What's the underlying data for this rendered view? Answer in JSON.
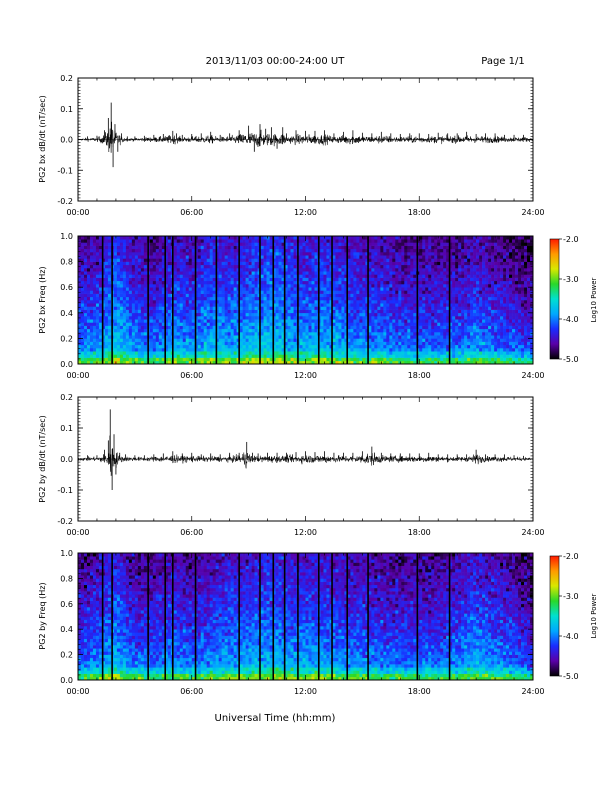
{
  "header": {
    "title": "2013/11/03  00:00-24:00 UT",
    "page": "Page 1/1"
  },
  "footer": {
    "xlabel": "Universal Time (hh:mm)"
  },
  "colorbar": {
    "label": "Log10 Power",
    "ticks": [
      "-2.0",
      "-3.0",
      "-4.0",
      "-5.0"
    ],
    "range": [
      -5.0,
      -2.0
    ],
    "colors": [
      "#000000",
      "#5a00a8",
      "#1a2cff",
      "#00a8ff",
      "#00e0d0",
      "#2ad82a",
      "#d8e800",
      "#ff9a00",
      "#ff1a00"
    ]
  },
  "chart_data": [
    {
      "type": "line",
      "panel": "PG2 bx dB/dt",
      "ylabel": "PG2 bx dB/dt (nT/sec)",
      "xlim": [
        0,
        24
      ],
      "ylim": [
        -0.2,
        0.2
      ],
      "x_ticks": [
        "00:00",
        "06:00",
        "12:00",
        "18:00",
        "24:00"
      ],
      "y_ticks": [
        "0.2",
        "0.1",
        "0.0",
        "-0.1",
        "-0.2"
      ],
      "series": [
        {
          "x": [
            0,
            0.5,
            1.0,
            1.4,
            1.6,
            1.75,
            1.85,
            1.95,
            2.1,
            2.3,
            2.6,
            3.0,
            3.5,
            4.0,
            4.5,
            5.0,
            5.2,
            5.5,
            6.0,
            6.5,
            7.0,
            7.5,
            8.0,
            8.5,
            9.0,
            9.3,
            9.6,
            9.9,
            10.2,
            10.5,
            10.8,
            11.0,
            11.5,
            12.0,
            12.5,
            13.0,
            13.5,
            14.0,
            14.5,
            15.0,
            15.5,
            16.0,
            16.5,
            17.0,
            17.5,
            18.0,
            18.5,
            19.0,
            19.5,
            20.0,
            20.5,
            21.0,
            21.5,
            22.0,
            22.5,
            23.0,
            23.5,
            24.0
          ],
          "y": [
            0.005,
            0.01,
            0.012,
            0.03,
            0.07,
            0.12,
            -0.09,
            0.05,
            -0.04,
            0.02,
            0.01,
            0.01,
            0.012,
            0.015,
            0.018,
            0.028,
            0.02,
            0.015,
            0.018,
            0.02,
            0.025,
            0.015,
            0.02,
            0.03,
            0.045,
            -0.04,
            0.05,
            0.035,
            0.04,
            -0.03,
            0.04,
            0.02,
            0.03,
            0.028,
            0.028,
            0.03,
            0.02,
            0.025,
            0.03,
            0.022,
            0.02,
            0.025,
            0.02,
            0.018,
            0.02,
            0.02,
            0.018,
            0.022,
            0.02,
            0.02,
            0.025,
            0.018,
            0.02,
            0.02,
            0.015,
            0.015,
            0.015,
            0.01
          ]
        }
      ]
    },
    {
      "type": "heatmap",
      "panel": "PG2 bx Freq",
      "ylabel": "PG2 bx Freq (Hz)",
      "xlim": [
        0,
        24
      ],
      "ylim": [
        0.0,
        1.0
      ],
      "x_ticks": [
        "00:00",
        "06:00",
        "12:00",
        "18:00",
        "24:00"
      ],
      "y_ticks": [
        "1.0",
        "0.8",
        "0.6",
        "0.4",
        "0.2",
        "0.0"
      ],
      "zlim": [
        -5.0,
        -2.0
      ],
      "gap_times_hr": [
        1.3,
        1.8,
        3.7,
        4.6,
        5.0,
        6.2,
        7.3,
        8.5,
        9.6,
        10.3,
        10.9,
        11.6,
        12.7,
        13.4,
        14.2,
        15.3,
        17.9,
        19.6
      ],
      "intensity_profile": {
        "t": [
          0,
          1,
          2,
          3,
          4,
          5,
          6,
          7,
          8,
          9,
          10,
          11,
          12,
          13,
          14,
          15,
          16,
          17,
          18,
          19,
          20,
          21,
          22,
          23,
          24
        ],
        "level_low_freq": [
          -3.6,
          -3.5,
          -3.2,
          -3.5,
          -3.6,
          -3.4,
          -3.5,
          -3.3,
          -3.4,
          -3.3,
          -3.2,
          -3.3,
          -3.4,
          -3.3,
          -3.4,
          -3.5,
          -3.5,
          -3.6,
          -3.6,
          -3.6,
          -3.6,
          -3.5,
          -3.6,
          -3.7,
          -3.8
        ]
      }
    },
    {
      "type": "line",
      "panel": "PG2 by dB/dt",
      "ylabel": "PG2 by dB/dt (nT/sec)",
      "xlim": [
        0,
        24
      ],
      "ylim": [
        -0.2,
        0.2
      ],
      "x_ticks": [
        "00:00",
        "06:00",
        "12:00",
        "18:00",
        "24:00"
      ],
      "y_ticks": [
        "0.2",
        "0.1",
        "0.0",
        "-0.1",
        "-0.2"
      ],
      "series": [
        {
          "x": [
            0,
            0.5,
            1.0,
            1.4,
            1.6,
            1.7,
            1.8,
            1.9,
            2.0,
            2.2,
            2.5,
            3.0,
            3.5,
            4.0,
            4.5,
            5.0,
            5.5,
            6.0,
            6.5,
            7.0,
            7.5,
            8.0,
            8.5,
            8.9,
            9.2,
            9.5,
            10.0,
            10.5,
            11.0,
            11.5,
            12.0,
            12.5,
            13.0,
            13.5,
            14.0,
            14.5,
            15.0,
            15.5,
            16.0,
            16.5,
            17.0,
            17.5,
            18.0,
            18.5,
            19.0,
            19.5,
            20.0,
            20.5,
            21.0,
            21.5,
            22.0,
            22.5,
            23.0,
            23.5,
            24.0
          ],
          "y": [
            0.01,
            0.012,
            0.012,
            0.03,
            0.06,
            0.16,
            -0.1,
            0.08,
            -0.05,
            0.02,
            0.015,
            0.012,
            0.012,
            0.015,
            0.018,
            0.025,
            0.018,
            0.02,
            0.015,
            0.018,
            0.015,
            0.02,
            0.02,
            0.055,
            0.02,
            0.018,
            0.02,
            0.02,
            0.02,
            0.022,
            0.025,
            0.022,
            0.025,
            0.02,
            0.02,
            0.02,
            0.025,
            0.04,
            0.02,
            0.018,
            0.018,
            0.018,
            0.018,
            0.02,
            0.015,
            0.015,
            0.015,
            0.015,
            0.03,
            0.015,
            0.015,
            0.015,
            0.012,
            0.01,
            0.008
          ]
        }
      ]
    },
    {
      "type": "heatmap",
      "panel": "PG2 by Freq",
      "ylabel": "PG2 by Freq (Hz)",
      "xlim": [
        0,
        24
      ],
      "ylim": [
        0.0,
        1.0
      ],
      "x_ticks": [
        "00:00",
        "06:00",
        "12:00",
        "18:00",
        "24:00"
      ],
      "y_ticks": [
        "1.0",
        "0.8",
        "0.6",
        "0.4",
        "0.2",
        "0.0"
      ],
      "zlim": [
        -5.0,
        -2.0
      ],
      "gap_times_hr": [
        1.3,
        1.8,
        3.7,
        4.6,
        5.0,
        6.2,
        8.5,
        9.6,
        10.3,
        10.9,
        11.6,
        12.7,
        13.4,
        14.2,
        15.3,
        17.9,
        19.6
      ],
      "intensity_profile": {
        "t": [
          0,
          1,
          2,
          3,
          4,
          5,
          6,
          7,
          8,
          9,
          10,
          11,
          12,
          13,
          14,
          15,
          16,
          17,
          18,
          19,
          20,
          21,
          22,
          23,
          24
        ],
        "level_low_freq": [
          -3.7,
          -3.5,
          -3.3,
          -3.6,
          -3.6,
          -3.5,
          -3.6,
          -3.5,
          -3.4,
          -3.4,
          -3.3,
          -3.4,
          -3.4,
          -3.4,
          -3.5,
          -3.5,
          -3.6,
          -3.6,
          -3.6,
          -3.6,
          -3.5,
          -3.4,
          -3.5,
          -3.6,
          -3.8
        ]
      }
    }
  ]
}
